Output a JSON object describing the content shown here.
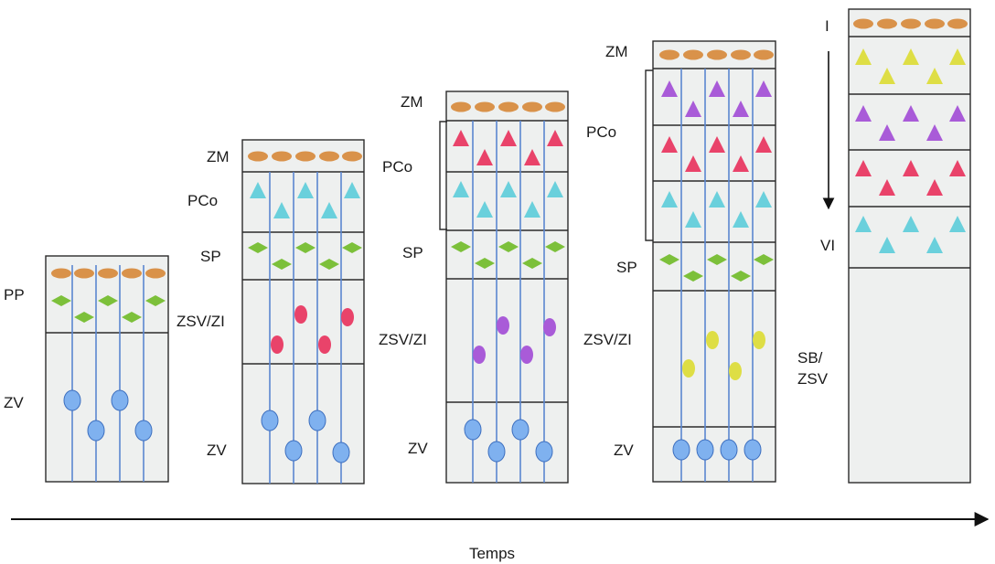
{
  "time_axis": {
    "label": "Temps"
  },
  "colors": {
    "orange": "#d9924a",
    "green": "#7cc03a",
    "blue": "#7fb1ef",
    "red": "#e9436a",
    "purple": "#a95bd8",
    "yellow": "#dede45",
    "cyan": "#6ad0dc"
  },
  "stages": [
    {
      "name": "stage-1",
      "layers": [
        {
          "label": "PP",
          "cells": [
            "orange-ellipse",
            "green-diamond"
          ]
        },
        {
          "label": "ZV",
          "cells": [
            "blue-oval"
          ]
        }
      ]
    },
    {
      "name": "stage-2",
      "layers": [
        {
          "label": "ZM",
          "cells": [
            "orange-ellipse"
          ]
        },
        {
          "label": "PCo",
          "cells": [
            "cyan-triangle"
          ]
        },
        {
          "label": "SP",
          "cells": [
            "green-diamond"
          ]
        },
        {
          "label": "ZSV/ZI",
          "cells": [
            "red-oval"
          ]
        },
        {
          "label": "ZV",
          "cells": [
            "blue-oval"
          ]
        }
      ]
    },
    {
      "name": "stage-3",
      "layers": [
        {
          "label": "ZM",
          "cells": [
            "orange-ellipse"
          ]
        },
        {
          "label": "PCo",
          "cells": [
            "red-triangle",
            "cyan-triangle"
          ]
        },
        {
          "label": "SP",
          "cells": [
            "green-diamond"
          ]
        },
        {
          "label": "ZSV/ZI",
          "cells": [
            "purple-oval"
          ]
        },
        {
          "label": "ZV",
          "cells": [
            "blue-oval"
          ]
        }
      ]
    },
    {
      "name": "stage-4",
      "layers": [
        {
          "label": "ZM",
          "cells": [
            "orange-ellipse"
          ]
        },
        {
          "label": "PCo",
          "cells": [
            "purple-triangle",
            "red-triangle",
            "cyan-triangle"
          ]
        },
        {
          "label": "SP",
          "cells": [
            "green-diamond"
          ]
        },
        {
          "label": "ZSV/ZI",
          "cells": [
            "yellow-oval"
          ]
        },
        {
          "label": "ZV",
          "cells": [
            "blue-oval"
          ]
        }
      ]
    },
    {
      "name": "stage-5",
      "layers": [
        {
          "label": "I",
          "cells": [
            "orange-ellipse"
          ]
        },
        {
          "label": "",
          "cells": [
            "yellow-triangle",
            "purple-triangle",
            "red-triangle"
          ]
        },
        {
          "label": "VI",
          "cells": [
            "cyan-triangle"
          ]
        },
        {
          "label": "SB/ ZSV",
          "cells": []
        }
      ]
    }
  ]
}
